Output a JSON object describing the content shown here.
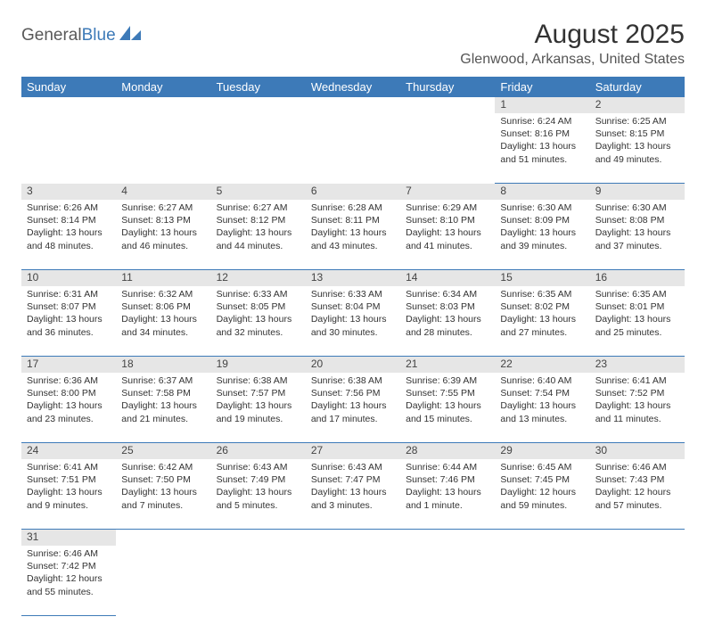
{
  "logo": {
    "part1": "General",
    "part2": "Blue"
  },
  "title": "August 2025",
  "location": "Glenwood, Arkansas, United States",
  "colors": {
    "header_bg": "#3d7ab8",
    "header_fg": "#ffffff",
    "daynum_bg": "#e6e6e6",
    "border": "#3d7ab8"
  },
  "weekdays": [
    "Sunday",
    "Monday",
    "Tuesday",
    "Wednesday",
    "Thursday",
    "Friday",
    "Saturday"
  ],
  "weeks": [
    [
      null,
      null,
      null,
      null,
      null,
      {
        "n": "1",
        "sr": "6:24 AM",
        "ss": "8:16 PM",
        "dl": "13 hours and 51 minutes."
      },
      {
        "n": "2",
        "sr": "6:25 AM",
        "ss": "8:15 PM",
        "dl": "13 hours and 49 minutes."
      }
    ],
    [
      {
        "n": "3",
        "sr": "6:26 AM",
        "ss": "8:14 PM",
        "dl": "13 hours and 48 minutes."
      },
      {
        "n": "4",
        "sr": "6:27 AM",
        "ss": "8:13 PM",
        "dl": "13 hours and 46 minutes."
      },
      {
        "n": "5",
        "sr": "6:27 AM",
        "ss": "8:12 PM",
        "dl": "13 hours and 44 minutes."
      },
      {
        "n": "6",
        "sr": "6:28 AM",
        "ss": "8:11 PM",
        "dl": "13 hours and 43 minutes."
      },
      {
        "n": "7",
        "sr": "6:29 AM",
        "ss": "8:10 PM",
        "dl": "13 hours and 41 minutes."
      },
      {
        "n": "8",
        "sr": "6:30 AM",
        "ss": "8:09 PM",
        "dl": "13 hours and 39 minutes."
      },
      {
        "n": "9",
        "sr": "6:30 AM",
        "ss": "8:08 PM",
        "dl": "13 hours and 37 minutes."
      }
    ],
    [
      {
        "n": "10",
        "sr": "6:31 AM",
        "ss": "8:07 PM",
        "dl": "13 hours and 36 minutes."
      },
      {
        "n": "11",
        "sr": "6:32 AM",
        "ss": "8:06 PM",
        "dl": "13 hours and 34 minutes."
      },
      {
        "n": "12",
        "sr": "6:33 AM",
        "ss": "8:05 PM",
        "dl": "13 hours and 32 minutes."
      },
      {
        "n": "13",
        "sr": "6:33 AM",
        "ss": "8:04 PM",
        "dl": "13 hours and 30 minutes."
      },
      {
        "n": "14",
        "sr": "6:34 AM",
        "ss": "8:03 PM",
        "dl": "13 hours and 28 minutes."
      },
      {
        "n": "15",
        "sr": "6:35 AM",
        "ss": "8:02 PM",
        "dl": "13 hours and 27 minutes."
      },
      {
        "n": "16",
        "sr": "6:35 AM",
        "ss": "8:01 PM",
        "dl": "13 hours and 25 minutes."
      }
    ],
    [
      {
        "n": "17",
        "sr": "6:36 AM",
        "ss": "8:00 PM",
        "dl": "13 hours and 23 minutes."
      },
      {
        "n": "18",
        "sr": "6:37 AM",
        "ss": "7:58 PM",
        "dl": "13 hours and 21 minutes."
      },
      {
        "n": "19",
        "sr": "6:38 AM",
        "ss": "7:57 PM",
        "dl": "13 hours and 19 minutes."
      },
      {
        "n": "20",
        "sr": "6:38 AM",
        "ss": "7:56 PM",
        "dl": "13 hours and 17 minutes."
      },
      {
        "n": "21",
        "sr": "6:39 AM",
        "ss": "7:55 PM",
        "dl": "13 hours and 15 minutes."
      },
      {
        "n": "22",
        "sr": "6:40 AM",
        "ss": "7:54 PM",
        "dl": "13 hours and 13 minutes."
      },
      {
        "n": "23",
        "sr": "6:41 AM",
        "ss": "7:52 PM",
        "dl": "13 hours and 11 minutes."
      }
    ],
    [
      {
        "n": "24",
        "sr": "6:41 AM",
        "ss": "7:51 PM",
        "dl": "13 hours and 9 minutes."
      },
      {
        "n": "25",
        "sr": "6:42 AM",
        "ss": "7:50 PM",
        "dl": "13 hours and 7 minutes."
      },
      {
        "n": "26",
        "sr": "6:43 AM",
        "ss": "7:49 PM",
        "dl": "13 hours and 5 minutes."
      },
      {
        "n": "27",
        "sr": "6:43 AM",
        "ss": "7:47 PM",
        "dl": "13 hours and 3 minutes."
      },
      {
        "n": "28",
        "sr": "6:44 AM",
        "ss": "7:46 PM",
        "dl": "13 hours and 1 minute."
      },
      {
        "n": "29",
        "sr": "6:45 AM",
        "ss": "7:45 PM",
        "dl": "12 hours and 59 minutes."
      },
      {
        "n": "30",
        "sr": "6:46 AM",
        "ss": "7:43 PM",
        "dl": "12 hours and 57 minutes."
      }
    ],
    [
      {
        "n": "31",
        "sr": "6:46 AM",
        "ss": "7:42 PM",
        "dl": "12 hours and 55 minutes."
      },
      null,
      null,
      null,
      null,
      null,
      null
    ]
  ],
  "labels": {
    "sunrise": "Sunrise:",
    "sunset": "Sunset:",
    "daylight": "Daylight:"
  }
}
